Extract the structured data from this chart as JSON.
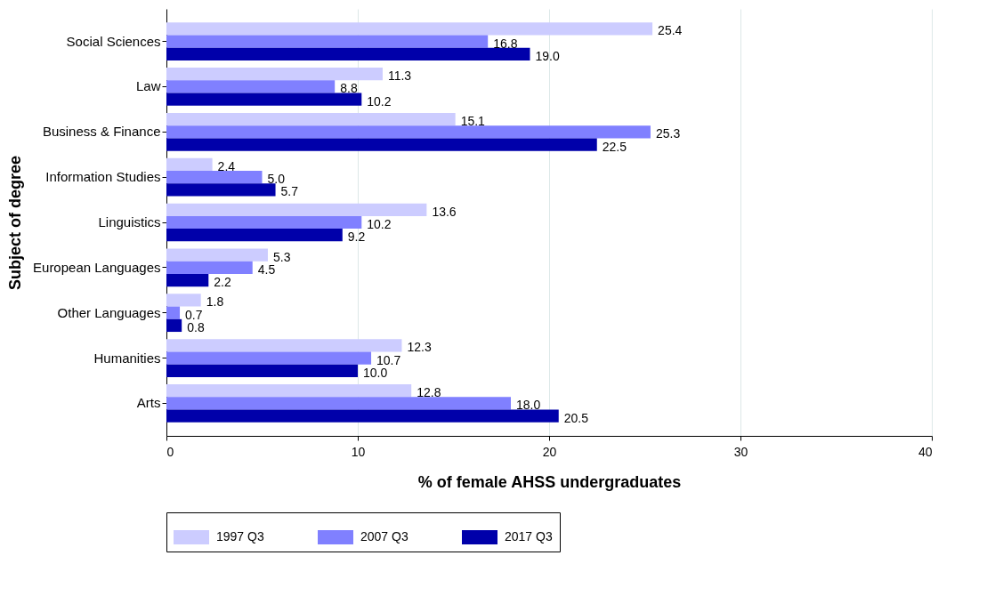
{
  "chart_data": {
    "type": "bar",
    "orientation": "horizontal",
    "xlabel": "% of female AHSS undergraduates",
    "ylabel": "Subject of degree",
    "categories": [
      "Social Sciences",
      "Law",
      "Business & Finance",
      "Information Studies",
      "Linguistics",
      "European Languages",
      "Other Languages",
      "Humanities",
      "Arts"
    ],
    "series": [
      {
        "name": "1997 Q3",
        "color": "#ccccff",
        "values": [
          25.4,
          11.3,
          15.1,
          2.4,
          13.6,
          5.3,
          1.8,
          12.3,
          12.8
        ],
        "value_labels": [
          "25.4",
          "11.3",
          "15.1",
          "2.4",
          "13.6",
          "5.3",
          "1.8",
          "12.3",
          "12.8"
        ]
      },
      {
        "name": "2007 Q3",
        "color": "#8080ff",
        "values": [
          16.8,
          8.8,
          25.3,
          5.0,
          10.2,
          4.5,
          0.7,
          10.7,
          18.0
        ],
        "value_labels": [
          "16.8",
          "8.8",
          "25.3",
          "5.0",
          "10.2",
          "4.5",
          "0.7",
          "10.7",
          "18.0"
        ]
      },
      {
        "name": "2017 Q3",
        "color": "#0000aa",
        "values": [
          19.0,
          10.2,
          22.5,
          5.7,
          9.2,
          2.2,
          0.8,
          10.0,
          20.5
        ],
        "value_labels": [
          "19.0",
          "10.2",
          "22.5",
          "5.7",
          "9.2",
          "2.2",
          "0.8",
          "10.0",
          "20.5"
        ]
      }
    ],
    "xlim": [
      0,
      40
    ],
    "xticks": [
      0,
      10,
      20,
      30,
      40
    ],
    "grid": "x",
    "legend": "bottom"
  }
}
